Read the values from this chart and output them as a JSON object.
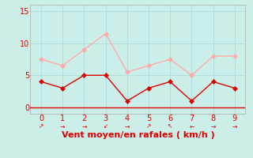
{
  "x": [
    0,
    1,
    2,
    3,
    4,
    5,
    6,
    7,
    8,
    9
  ],
  "vent_moyen": [
    4,
    3,
    5,
    5,
    1,
    3,
    4,
    1,
    4,
    3
  ],
  "rafales": [
    7.5,
    6.5,
    9,
    11.5,
    5.5,
    6.5,
    7.5,
    5,
    8,
    8
  ],
  "color_moyen": "#dd0000",
  "color_rafales": "#ffaaaa",
  "background_color": "#cceee8",
  "xlabel": "Vent moyen/en rafales ( km/h )",
  "xlabel_fontsize": 8,
  "yticks": [
    0,
    5,
    10,
    15
  ],
  "ylim": [
    -1,
    16
  ],
  "xlim": [
    -0.5,
    9.5
  ],
  "grid_color": "#aadddd",
  "spine_color": "#aaaaaa",
  "tick_color": "#dd0000",
  "label_color": "#dd0000",
  "arrows": [
    "↗",
    "→",
    "→",
    "↙",
    "→",
    "↗",
    "↖",
    "←",
    "→",
    "→"
  ],
  "tick_labelsize": 7,
  "marker_size": 3
}
